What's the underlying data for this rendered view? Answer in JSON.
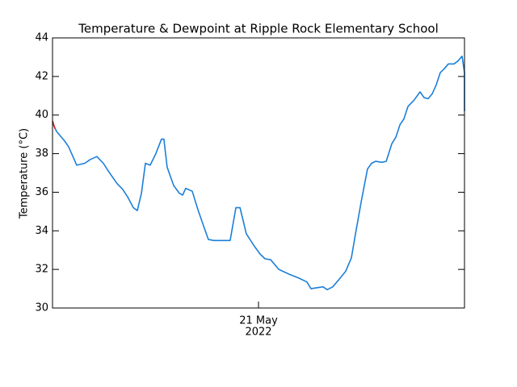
{
  "chart_data": {
    "type": "line",
    "title": "Temperature & Dewpoint at Ripple Rock Elementary School",
    "y_label": "Temperature (°C)",
    "x_sublabel": "2022",
    "xlim": [
      -12,
      12
    ],
    "xticks": [
      {
        "value": 0,
        "label": "21 May"
      }
    ],
    "ylim": [
      30,
      44
    ],
    "yticks": [
      30,
      32,
      34,
      36,
      38,
      40,
      42,
      44
    ],
    "grid": false,
    "series": [
      {
        "color": "#1c7fd9",
        "x": [
          -12,
          -11.76,
          -11.29,
          -11.06,
          -10.59,
          -10.12,
          -9.79,
          -9.41,
          -9.04,
          -8.71,
          -8.24,
          -7.91,
          -7.62,
          -7.29,
          -7.06,
          -6.82,
          -6.59,
          -6.31,
          -5.98,
          -5.65,
          -5.51,
          -5.32,
          -4.94,
          -4.61,
          -4.42,
          -4.24,
          -3.86,
          -3.53,
          -3.2,
          -2.92,
          -2.59,
          -2.26,
          -1.65,
          -1.32,
          -1.08,
          -0.94,
          -0.71,
          -0.24,
          0.09,
          0.38,
          0.71,
          1.18,
          1.79,
          2.35,
          2.82,
          3.06,
          3.39,
          3.76,
          4.0,
          4.33,
          4.71,
          5.08,
          5.41,
          5.65,
          5.98,
          6.35,
          6.59,
          6.82,
          7.2,
          7.44,
          7.76,
          8.0,
          8.24,
          8.47,
          8.71,
          9.04,
          9.41,
          9.65,
          9.88,
          10.12,
          10.35,
          10.59,
          10.82,
          11.06,
          11.39,
          11.62,
          11.86,
          12,
          12
        ],
        "values": [
          39.6,
          39.15,
          38.65,
          38.35,
          37.4,
          37.5,
          37.7,
          37.85,
          37.5,
          37.05,
          36.45,
          36.15,
          35.75,
          35.2,
          35.05,
          35.95,
          37.5,
          37.4,
          38.0,
          38.75,
          38.75,
          37.3,
          36.35,
          35.95,
          35.85,
          36.2,
          36.05,
          35.1,
          34.25,
          33.55,
          33.5,
          33.5,
          33.5,
          35.2,
          35.2,
          34.7,
          33.85,
          33.2,
          32.8,
          32.55,
          32.5,
          32.0,
          31.75,
          31.55,
          31.35,
          31.0,
          31.05,
          31.1,
          30.95,
          31.1,
          31.5,
          31.9,
          32.6,
          33.85,
          35.5,
          37.2,
          37.5,
          37.6,
          37.55,
          37.6,
          38.5,
          38.85,
          39.5,
          39.8,
          40.45,
          40.75,
          41.2,
          40.9,
          40.85,
          41.1,
          41.55,
          42.2,
          42.4,
          42.65,
          42.65,
          42.8,
          43.05,
          42.2,
          40.2
        ]
      },
      {
        "color": "#d62020",
        "x": [
          -12,
          -11.86
        ],
        "values": [
          39.7,
          39.3
        ]
      }
    ]
  }
}
